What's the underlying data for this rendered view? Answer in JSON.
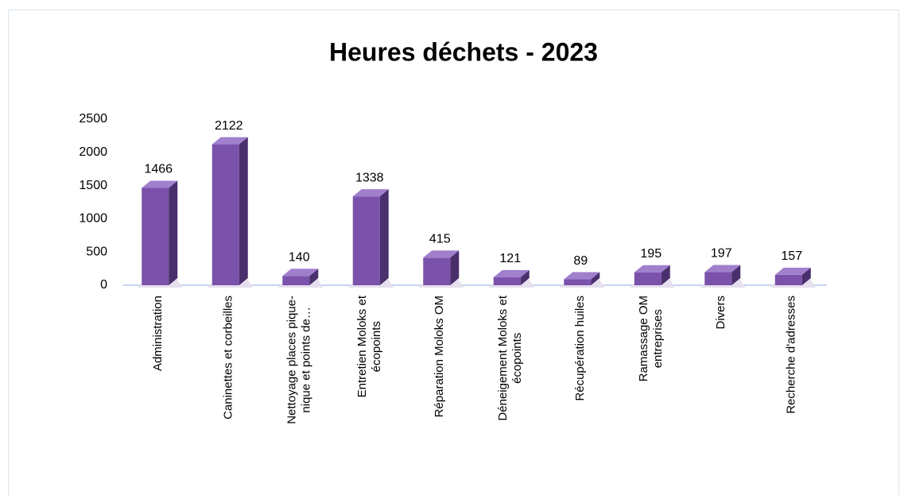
{
  "chart_data": {
    "type": "bar3d",
    "title": "Heures déchets - 2023",
    "categories": [
      "Administration",
      "Caninettes et corbeilles",
      "Nettoyage places pique-nique et points de…",
      "Entretien Moloks et écopoints",
      "Réparation Moloks OM",
      "Déneigement Moloks et écopoints",
      "Récupération huiles",
      "Ramassage OM entreprises",
      "Divers",
      "Recherche d'adresses"
    ],
    "values": [
      1466,
      2122,
      140,
      1338,
      415,
      121,
      89,
      195,
      197,
      157
    ],
    "color": "#7b52ab",
    "ylim": [
      0,
      2500
    ],
    "yticks": [
      0,
      500,
      1000,
      1500,
      2000,
      2500
    ],
    "grid": false
  }
}
